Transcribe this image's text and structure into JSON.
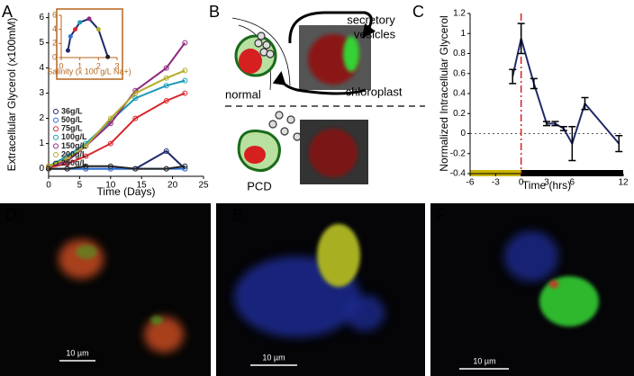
{
  "panel_labels": [
    "A",
    "B",
    "C",
    "D",
    "E",
    "F"
  ],
  "chart_data": [
    {
      "type": "line",
      "xlabel": "Time (Days)",
      "ylabel": "Extracellular Glycerol (x100mM)",
      "x": [
        0,
        3,
        6,
        10,
        14,
        19,
        22
      ],
      "xlim": [
        0,
        25
      ],
      "xticks": [
        0,
        5,
        10,
        15,
        20,
        25
      ],
      "ylim": [
        -0.3,
        6.2
      ],
      "yticks": [
        0,
        1,
        2,
        3,
        4,
        5,
        6
      ],
      "grid": false,
      "legend": "lower-left",
      "marker": "open",
      "series": [
        {
          "name": "36g/L",
          "color": "#1f2a6b",
          "values": [
            0,
            0,
            0,
            0,
            0,
            0.7,
            0
          ]
        },
        {
          "name": "50g/L",
          "color": "#2b6fd6",
          "values": [
            0,
            0,
            0,
            0,
            0,
            0,
            0
          ]
        },
        {
          "name": "75g/L",
          "color": "#d9262c",
          "values": [
            0.05,
            0.2,
            0.5,
            1.0,
            2.0,
            2.7,
            3.0
          ]
        },
        {
          "name": "100g/L",
          "color": "#1b9bb5",
          "values": [
            0.1,
            0.5,
            1.0,
            1.9,
            2.8,
            3.3,
            3.5
          ]
        },
        {
          "name": "150g/L",
          "color": "#8e2a7e",
          "values": [
            0.1,
            0.3,
            0.9,
            1.8,
            3.1,
            4.0,
            5.0
          ]
        },
        {
          "name": "200g/L",
          "color": "#b3ad2a",
          "values": [
            0.1,
            0.4,
            0.9,
            2.0,
            3.0,
            3.6,
            3.9
          ]
        },
        {
          "name": "250g/L",
          "color": "#222222",
          "values": [
            0,
            0,
            0.1,
            0.1,
            0,
            0,
            0.1
          ]
        }
      ]
    },
    {
      "type": "line",
      "xlabel": "Salinity (x 100 g/L Na+)",
      "x": [
        0.36,
        0.5,
        0.75,
        1.0,
        1.5,
        2.0,
        2.5
      ],
      "xlim": [
        0,
        3
      ],
      "xticks": [
        0,
        1,
        2,
        3
      ],
      "ylim": [
        0,
        6
      ],
      "yticks": [
        0,
        2,
        4,
        6
      ],
      "grid": false,
      "marker": "filled",
      "axis_color": "#b5651d",
      "series": [
        {
          "color": "#1f2a6b",
          "values": [
            1.0,
            3.0,
            4.0,
            5.0,
            5.5,
            4.0,
            0.1
          ],
          "marker_colors": [
            "#1f2a6b",
            "#2b6fd6",
            "#d9262c",
            "#1b9bb5",
            "#8e2a7e",
            "#b3ad2a",
            "#222222"
          ]
        }
      ]
    },
    {
      "type": "line",
      "xlabel": "Time (hrs)",
      "ylabel": "Normalized Intracellular Glycerol",
      "x": [
        -1,
        0,
        1.5,
        3,
        4,
        5,
        6,
        7.5,
        11.5
      ],
      "xlim": [
        -6,
        12
      ],
      "xticks": [
        -6,
        -3,
        0,
        3,
        6,
        12
      ],
      "ylim": [
        -0.4,
        1.2
      ],
      "yticks": [
        -0.4,
        -0.2,
        0,
        0.2,
        0.4,
        0.6,
        0.8,
        1,
        1.2
      ],
      "grid": false,
      "marker": "none",
      "vline": 0,
      "hline": 0,
      "light_bar": [
        {
          "start": -6,
          "end": 0,
          "color": "#c9b400"
        },
        {
          "start": 0,
          "end": 12,
          "color": "#000000"
        }
      ],
      "series": [
        {
          "color": "#1f2a6b",
          "values": [
            0.57,
            0.95,
            0.5,
            0.1,
            0.1,
            0.05,
            -0.1,
            0.3,
            -0.1
          ],
          "errors": [
            0.07,
            0.15,
            0.05,
            0.02,
            0.02,
            0.02,
            0.17,
            0.06,
            0.08
          ]
        }
      ]
    }
  ],
  "diagram": {
    "vesicles_label": [
      "secretory",
      "vesicles"
    ],
    "chloroplast_label": "chloroplast",
    "normal_label": "normal",
    "pcd_label": "PCD"
  },
  "micrographs": [
    {
      "scale_bar": "10 µm"
    },
    {
      "scale_bar": "10 µm"
    },
    {
      "scale_bar": "10 µm"
    }
  ]
}
